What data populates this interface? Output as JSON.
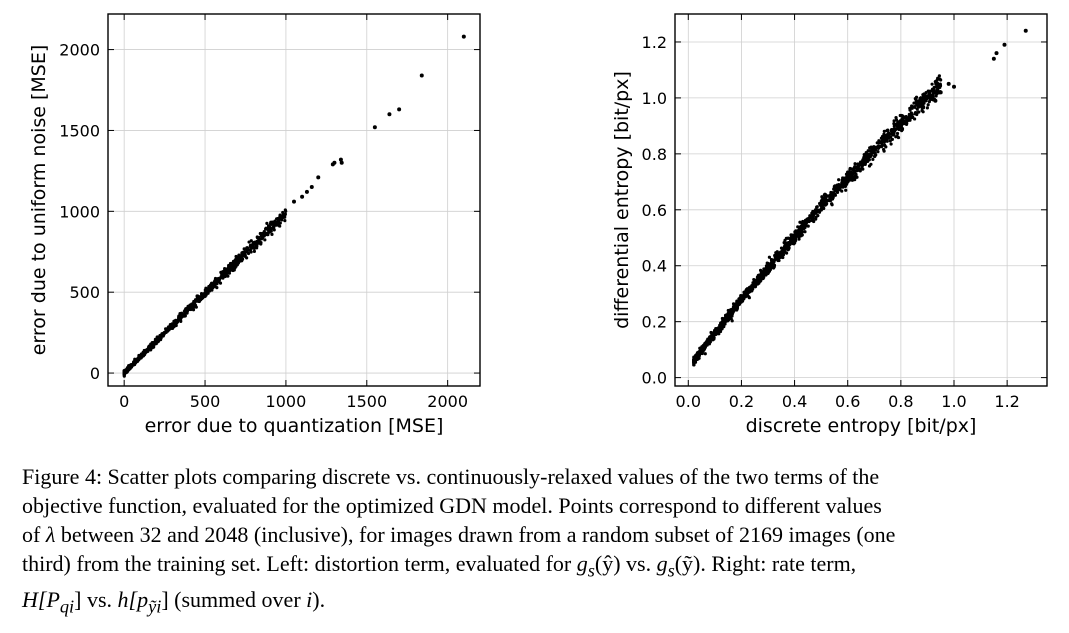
{
  "chart_data": [
    {
      "type": "scatter",
      "xlabel": "error due to quantization [MSE]",
      "ylabel": "error due to uniform noise [MSE]",
      "xlim": [
        -100,
        2200
      ],
      "ylim": [
        -80,
        2220
      ],
      "xticks": [
        0,
        500,
        1000,
        1500,
        2000
      ],
      "yticks": [
        0,
        500,
        1000,
        1500,
        2000
      ],
      "xtick_labels": [
        "0",
        "500",
        "1000",
        "1500",
        "2000"
      ],
      "ytick_labels": [
        "0",
        "500",
        "1000",
        "1500",
        "2000"
      ],
      "grid": true,
      "trend": {
        "x_start": 0,
        "x_end": 1000,
        "slope": 0.99,
        "intercept": 0,
        "spread": 14
      },
      "points": [
        {
          "x": 1290,
          "y": 1290
        },
        {
          "x": 1300,
          "y": 1300
        },
        {
          "x": 1340,
          "y": 1320
        },
        {
          "x": 1345,
          "y": 1300
        },
        {
          "x": 1550,
          "y": 1520
        },
        {
          "x": 1640,
          "y": 1600
        },
        {
          "x": 1700,
          "y": 1630
        },
        {
          "x": 1840,
          "y": 1840
        },
        {
          "x": 2100,
          "y": 2080
        },
        {
          "x": 1130,
          "y": 1120
        },
        {
          "x": 1200,
          "y": 1210
        },
        {
          "x": 1050,
          "y": 1060
        },
        {
          "x": 1100,
          "y": 1090
        },
        {
          "x": 1160,
          "y": 1150
        }
      ]
    },
    {
      "type": "scatter",
      "xlabel": "discrete entropy [bit/px]",
      "ylabel": "differential entropy [bit/px]",
      "xlim": [
        -0.05,
        1.35
      ],
      "ylim": [
        -0.03,
        1.3
      ],
      "xticks": [
        0.0,
        0.2,
        0.4,
        0.6,
        0.8,
        1.0,
        1.2
      ],
      "yticks": [
        0.0,
        0.2,
        0.4,
        0.6,
        0.8,
        1.0,
        1.2
      ],
      "xtick_labels": [
        "0.0",
        "0.2",
        "0.4",
        "0.6",
        "0.8",
        "1.0",
        "1.2"
      ],
      "ytick_labels": [
        "0.0",
        "0.2",
        "0.4",
        "0.6",
        "0.8",
        "1.0",
        "1.2"
      ],
      "grid": true,
      "trend": {
        "x_start": 0.02,
        "x_end": 0.95,
        "spread": 0.012
      },
      "points": [
        {
          "x": 0.98,
          "y": 1.05
        },
        {
          "x": 1.0,
          "y": 1.04
        },
        {
          "x": 1.15,
          "y": 1.14
        },
        {
          "x": 1.16,
          "y": 1.16
        },
        {
          "x": 1.19,
          "y": 1.19
        },
        {
          "x": 1.27,
          "y": 1.24
        },
        {
          "x": 0.95,
          "y": 1.02
        },
        {
          "x": 0.93,
          "y": 0.99
        }
      ]
    }
  ],
  "caption": {
    "line1": "Figure 4: Scatter plots comparing discrete vs. continuously-relaxed values of the two terms of the",
    "line2": "objective function, evaluated for the optimized GDN model. Points correspond to different values",
    "line3_a": "of ",
    "line3_lambda": "λ",
    "line3_b": " between 32 and 2048 (inclusive), for images drawn from a random subset of 2169 images (one",
    "line4_a": "third) from the training set. Left: distortion term, evaluated for ",
    "line4_m1": "g",
    "line4_m1_sub": "s",
    "line4_m1_arg": "(ŷ)",
    "line4_b": " vs. ",
    "line4_m2": "g",
    "line4_m2_sub": "s",
    "line4_m2_arg": "(ỹ)",
    "line4_c": ". Right: rate term,",
    "line5_m1": "H[P",
    "line5_m1_sub": "qi",
    "line5_m1_end": "]",
    "line5_b": " vs. ",
    "line5_m2": "h[p",
    "line5_m2_sub": "ỹi",
    "line5_m2_end": "]",
    "line5_c": " (summed over ",
    "line5_i": "i",
    "line5_d": ")."
  }
}
